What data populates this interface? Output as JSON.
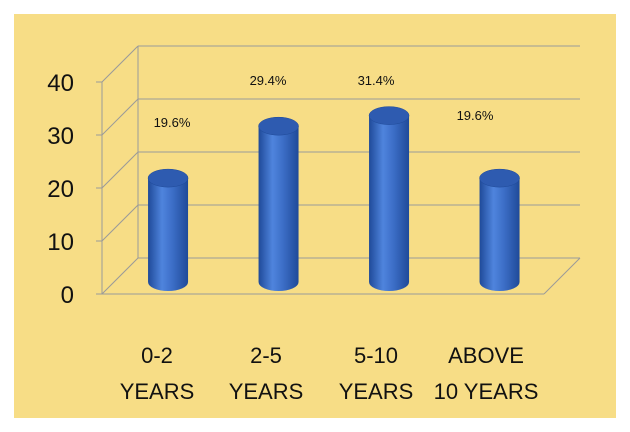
{
  "chart_data": {
    "type": "bar",
    "style": "3d-cylinder",
    "categories": [
      [
        "0-2",
        "YEARS"
      ],
      [
        "2-5",
        "YEARS"
      ],
      [
        "5-10",
        "YEARS"
      ],
      [
        "ABOVE",
        "10 YEARS"
      ]
    ],
    "values": [
      19.6,
      29.4,
      31.4,
      19.6
    ],
    "data_labels": [
      "19.6%",
      "29.4%",
      "31.4%",
      "19.6%"
    ],
    "y_ticks": [
      "0",
      "10",
      "20",
      "30",
      "40"
    ],
    "ylim": [
      0,
      40
    ],
    "grid": true,
    "legend": "none",
    "colors": {
      "background": "#f7dd86",
      "bar": "#3d6fc8",
      "bar_dark": "#1f4a99",
      "bar_top": "#2e5bb0",
      "grid": "#9a9a9a"
    }
  }
}
